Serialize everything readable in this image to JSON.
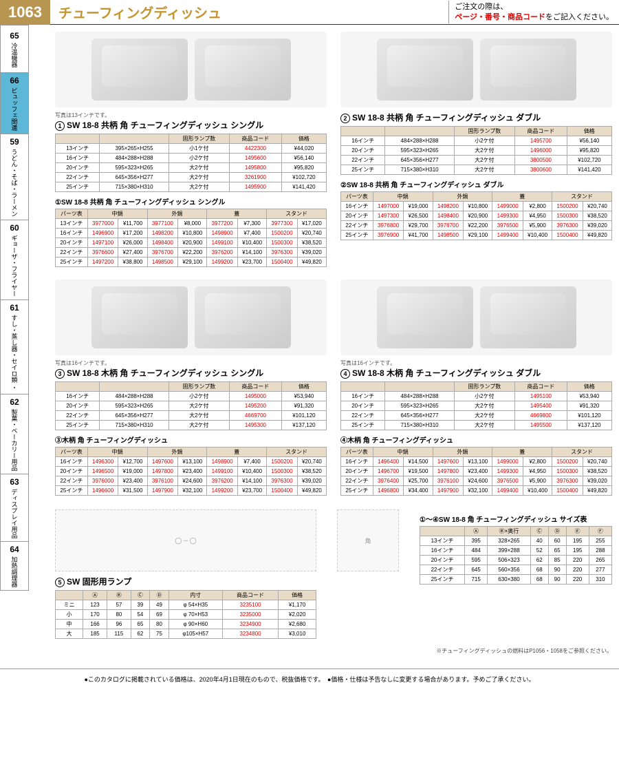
{
  "header": {
    "pageNum": "1063",
    "title": "チューフィングディッシュ",
    "orderNote1": "ご注文の際は、",
    "orderNote2": "ページ・番号・商品コード",
    "orderNote3": "をご記入ください。"
  },
  "sidebar": [
    {
      "num": "65",
      "label": "冷温機器"
    },
    {
      "num": "66",
      "label": "ビュッフェ関連",
      "active": true
    },
    {
      "num": "59",
      "label": "うどん・そば・ラーメン"
    },
    {
      "num": "60",
      "label": "ギョーザ・フライヤー"
    },
    {
      "num": "61",
      "label": "すし・蒸し器・セイロ類 ・"
    },
    {
      "num": "62",
      "label": "製菓・ベーカリー用品"
    },
    {
      "num": "63",
      "label": "ディスプレイ用品"
    },
    {
      "num": "64",
      "label": "加熱調理器"
    }
  ],
  "p1": {
    "num": "1",
    "title": "SW 18-8 共柄 角 チューフィングディッシュ シングル",
    "caption": "写真は13インチです。",
    "cols": [
      "",
      "",
      "固形ランプ数",
      "商品コード",
      "価格"
    ],
    "rows": [
      [
        "13インチ",
        "395×265×H255",
        "小1ケ付",
        "4422300",
        "¥44,020"
      ],
      [
        "16インチ",
        "484×288×H288",
        "小2ケ付",
        "1495600",
        "¥56,140"
      ],
      [
        "20インチ",
        "595×323×H265",
        "大2ケ付",
        "1495800",
        "¥95,820"
      ],
      [
        "22インチ",
        "645×356×H277",
        "大2ケ付",
        "3261900",
        "¥102,720"
      ],
      [
        "25インチ",
        "715×380×H310",
        "大2ケ付",
        "1495900",
        "¥141,420"
      ]
    ],
    "partsTitle": "①SW 18-8 共柄 角 チューフィングディッシュ シングル",
    "partsCols": [
      "パーツ表",
      "中鍋",
      "",
      "外鍋",
      "",
      "蓋",
      "",
      "スタンド",
      ""
    ],
    "partsRows": [
      [
        "13インチ",
        "3977000",
        "¥11,700",
        "3977100",
        "¥8,000",
        "3977200",
        "¥7,300",
        "3977300",
        "¥17,020"
      ],
      [
        "16インチ",
        "1496900",
        "¥17,200",
        "1498200",
        "¥10,800",
        "1498900",
        "¥7,400",
        "1500200",
        "¥20,740"
      ],
      [
        "20インチ",
        "1497100",
        "¥26,000",
        "1498400",
        "¥20,900",
        "1499100",
        "¥10,400",
        "1500300",
        "¥38,520"
      ],
      [
        "22インチ",
        "3976600",
        "¥27,400",
        "3976700",
        "¥22,200",
        "3976200",
        "¥14,100",
        "3976300",
        "¥39,020"
      ],
      [
        "25インチ",
        "1497200",
        "¥38,800",
        "1498500",
        "¥29,100",
        "1499200",
        "¥23,700",
        "1500400",
        "¥49,820"
      ]
    ]
  },
  "p2": {
    "num": "2",
    "title": "SW 18-8 共柄 角 チューフィングディッシュ ダブル",
    "cols": [
      "",
      "",
      "固形ランプ数",
      "商品コード",
      "価格"
    ],
    "rows": [
      [
        "16インチ",
        "484×288×H288",
        "小2ケ付",
        "1495700",
        "¥56,140"
      ],
      [
        "20インチ",
        "595×323×H265",
        "大2ケ付",
        "1496000",
        "¥95,820"
      ],
      [
        "22インチ",
        "645×356×H277",
        "大2ケ付",
        "3800500",
        "¥102,720"
      ],
      [
        "25インチ",
        "715×380×H310",
        "大2ケ付",
        "3800600",
        "¥141,420"
      ]
    ],
    "partsTitle": "②SW 18-8 共柄 角 チューフィングディッシュ ダブル",
    "partsCols": [
      "パーツ表",
      "中鍋",
      "",
      "外鍋",
      "",
      "蓋",
      "",
      "スタンド",
      ""
    ],
    "partsRows": [
      [
        "16インチ",
        "1497000",
        "¥19,000",
        "1498200",
        "¥10,800",
        "1499000",
        "¥2,800",
        "1500200",
        "¥20,740"
      ],
      [
        "20インチ",
        "1497300",
        "¥26,500",
        "1498400",
        "¥20,900",
        "1499300",
        "¥4,950",
        "1500300",
        "¥38,520"
      ],
      [
        "22インチ",
        "3976800",
        "¥29,700",
        "3976700",
        "¥22,200",
        "3976500",
        "¥5,900",
        "3976300",
        "¥39,020"
      ],
      [
        "25インチ",
        "3976900",
        "¥41,700",
        "1498500",
        "¥29,100",
        "1499400",
        "¥10,400",
        "1500400",
        "¥49,820"
      ]
    ]
  },
  "p3": {
    "num": "3",
    "title": "SW 18-8 木柄 角 チューフィングディッシュ シングル",
    "caption": "写真は16インチです。",
    "cols": [
      "",
      "",
      "固形ランプ数",
      "商品コード",
      "価格"
    ],
    "rows": [
      [
        "16インチ",
        "484×288×H288",
        "小2ケ付",
        "1495000",
        "¥53,940"
      ],
      [
        "20インチ",
        "595×323×H265",
        "大2ケ付",
        "1495200",
        "¥91,320"
      ],
      [
        "22インチ",
        "645×356×H277",
        "大2ケ付",
        "4669700",
        "¥101,120"
      ],
      [
        "25インチ",
        "715×380×H310",
        "大2ケ付",
        "1495300",
        "¥137,120"
      ]
    ],
    "partsTitle": "③木柄 角 チューフィングディッシュ",
    "partsCols": [
      "パーツ表",
      "中鍋",
      "",
      "外鍋",
      "",
      "蓋",
      "",
      "スタンド",
      ""
    ],
    "partsRows": [
      [
        "16インチ",
        "1496300",
        "¥12,700",
        "1497600",
        "¥13,100",
        "1498900",
        "¥7,400",
        "1500200",
        "¥20,740"
      ],
      [
        "20インチ",
        "1496500",
        "¥19,000",
        "1497800",
        "¥23,400",
        "1499100",
        "¥10,400",
        "1500300",
        "¥38,520"
      ],
      [
        "22インチ",
        "3976000",
        "¥23,400",
        "3976100",
        "¥24,600",
        "3976200",
        "¥14,100",
        "3976300",
        "¥39,020"
      ],
      [
        "25インチ",
        "1496600",
        "¥31,500",
        "1497900",
        "¥32,100",
        "1499200",
        "¥23,700",
        "1500400",
        "¥49,820"
      ]
    ]
  },
  "p4": {
    "num": "4",
    "title": "SW 18-8 木柄 角 チューフィングディッシュ ダブル",
    "caption": "写真は16インチです。",
    "cols": [
      "",
      "",
      "固形ランプ数",
      "商品コード",
      "価格"
    ],
    "rows": [
      [
        "16インチ",
        "484×288×H288",
        "小2ケ付",
        "1495100",
        "¥53,940"
      ],
      [
        "20インチ",
        "595×323×H265",
        "大2ケ付",
        "1495400",
        "¥91,320"
      ],
      [
        "22インチ",
        "645×356×H277",
        "大2ケ付",
        "4669800",
        "¥101,120"
      ],
      [
        "25インチ",
        "715×380×H310",
        "大2ケ付",
        "1495500",
        "¥137,120"
      ]
    ],
    "partsTitle": "④木柄 角 チューフィングディッシュ",
    "partsCols": [
      "パーツ表",
      "中鍋",
      "",
      "外鍋",
      "",
      "蓋",
      "",
      "スタンド",
      ""
    ],
    "partsRows": [
      [
        "16インチ",
        "1496400",
        "¥14,500",
        "1497600",
        "¥13,100",
        "1499000",
        "¥2,800",
        "1500200",
        "¥20,740"
      ],
      [
        "20インチ",
        "1496700",
        "¥19,500",
        "1497800",
        "¥23,400",
        "1499300",
        "¥4,950",
        "1500300",
        "¥38,520"
      ],
      [
        "22インチ",
        "3976400",
        "¥25,700",
        "3976100",
        "¥24,600",
        "3976500",
        "¥5,900",
        "3976300",
        "¥39,020"
      ],
      [
        "25インチ",
        "1496800",
        "¥34,400",
        "1497900",
        "¥32,100",
        "1499400",
        "¥10,400",
        "1500400",
        "¥49,820"
      ]
    ]
  },
  "p5": {
    "num": "5",
    "title": "SW 固形用ランプ",
    "cols": [
      "",
      "Ⓐ",
      "Ⓑ",
      "Ⓒ",
      "Ⓓ",
      "内寸",
      "商品コード",
      "価格"
    ],
    "rows": [
      [
        "ミニ",
        "123",
        "57",
        "39",
        "49",
        "φ 54×H35",
        "3235100",
        "¥1,170"
      ],
      [
        "小",
        "170",
        "80",
        "54",
        "69",
        "φ 70×H53",
        "3235000",
        "¥2,020"
      ],
      [
        "中",
        "166",
        "96",
        "65",
        "80",
        "φ 90×H60",
        "3234900",
        "¥2,680"
      ],
      [
        "大",
        "185",
        "115",
        "62",
        "75",
        "φ105×H57",
        "3234800",
        "¥3,010"
      ]
    ]
  },
  "sizeTable": {
    "title": "①～④SW 18-8 角 チューフィングディッシュ サイズ表",
    "cols": [
      "",
      "Ⓐ",
      "Ⓑ×奥行",
      "Ⓒ",
      "Ⓓ",
      "Ⓔ",
      "Ⓕ"
    ],
    "rows": [
      [
        "13インチ",
        "395",
        "328×265",
        "40",
        "60",
        "195",
        "255"
      ],
      [
        "16インチ",
        "484",
        "399×288",
        "52",
        "65",
        "195",
        "288"
      ],
      [
        "20インチ",
        "595",
        "506×323",
        "62",
        "85",
        "220",
        "265"
      ],
      [
        "22インチ",
        "645",
        "560×356",
        "68",
        "90",
        "220",
        "277"
      ],
      [
        "25インチ",
        "715",
        "630×380",
        "68",
        "90",
        "220",
        "310"
      ]
    ],
    "diagLabel": "角"
  },
  "notes": {
    "fuel": "※チューフィングディッシュの燃料はP1056・1058をご参照ください。",
    "footer": "●このカタログに掲載されている価格は、2020年4月1日現在のもので、税抜価格です。　●価格・仕様は予告なしに変更する場合があります。予めご了承ください。"
  }
}
